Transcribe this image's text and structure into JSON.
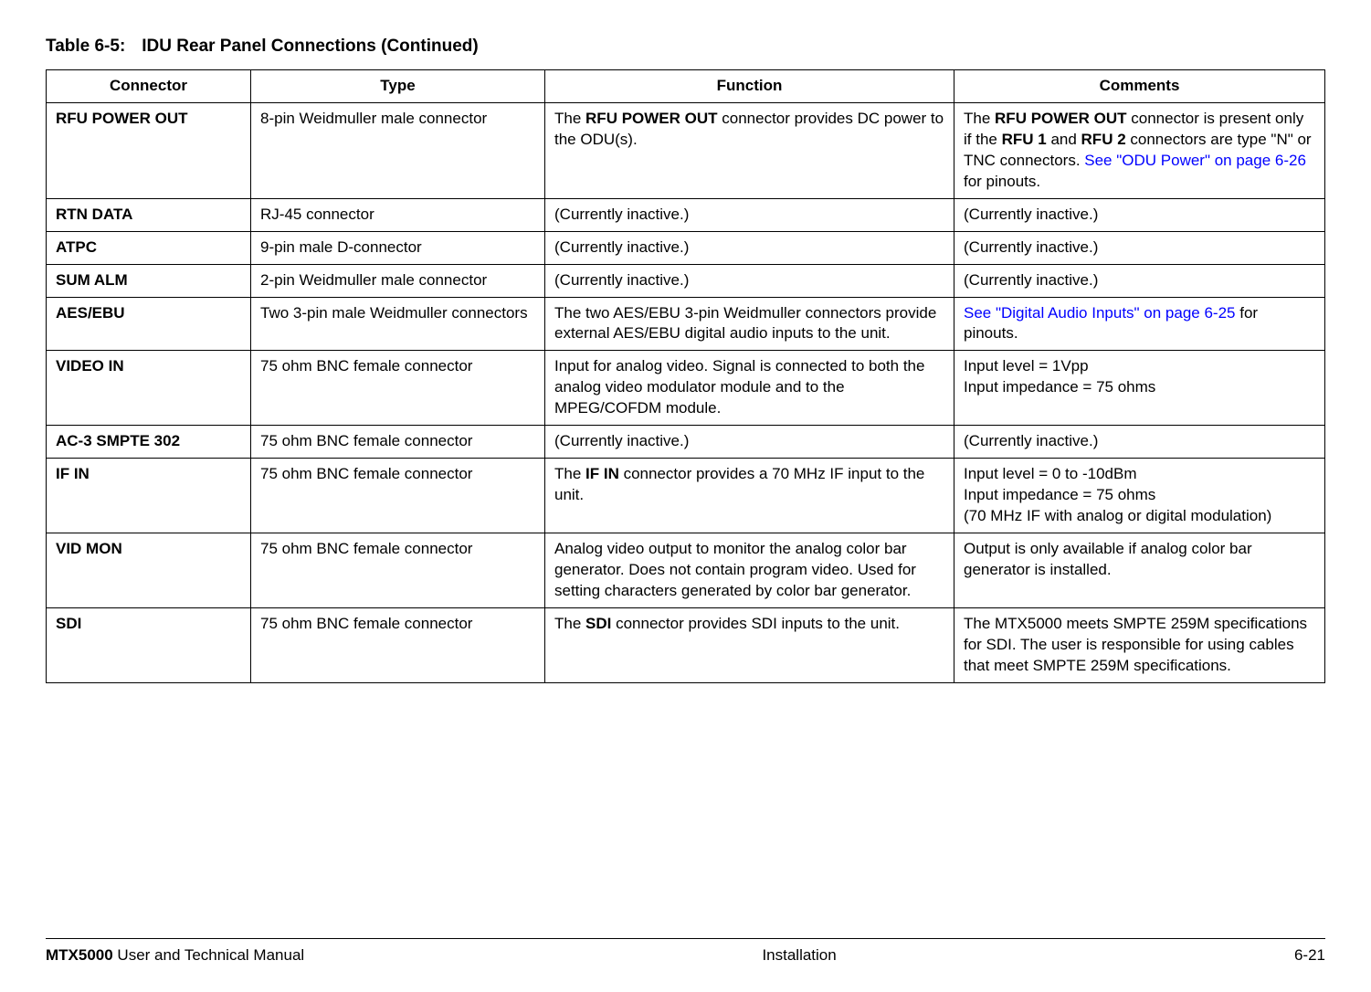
{
  "title_number": "Table 6-5:",
  "title_text": "IDU Rear Panel Connections (Continued)",
  "headers": {
    "connector": "Connector",
    "type": "Type",
    "function": "Function",
    "comments": "Comments"
  },
  "rows": {
    "r0": {
      "connector": "RFU POWER OUT",
      "type": "8-pin Weidmuller male connector",
      "func_pre": "The ",
      "func_bold1": "RFU POWER OUT",
      "func_post": " connector provides DC power to the ODU(s).",
      "com_pre": "The ",
      "com_b1": "RFU POWER OUT",
      "com_mid1": " connector is present only if the ",
      "com_b2": "RFU 1",
      "com_mid2": " and  ",
      "com_b3": "RFU 2",
      "com_mid3": " connectors are type \"N\" or TNC connectors. ",
      "com_link": "See \"ODU Power\" on page 6-26",
      "com_post": " for pinouts."
    },
    "r1": {
      "connector": "RTN DATA",
      "type": "RJ-45 connector",
      "function": "(Currently inactive.)",
      "comments": "(Currently inactive.)"
    },
    "r2": {
      "connector": "ATPC",
      "type": "9-pin male D-connector",
      "function": "(Currently inactive.)",
      "comments": "(Currently inactive.)"
    },
    "r3": {
      "connector": "SUM ALM",
      "type": "2-pin Weidmuller male connector",
      "function": "(Currently inactive.)",
      "comments": "(Currently inactive.)"
    },
    "r4": {
      "connector": "AES/EBU",
      "type": "Two 3-pin male Weidmuller connectors",
      "function": "The two AES/EBU 3-pin Weidmuller connectors provide external AES/EBU digital audio inputs to the unit.",
      "com_link": "See \"Digital Audio Inputs\" on page 6-25",
      "com_post": " for pinouts."
    },
    "r5": {
      "connector": "VIDEO IN",
      "type": "75 ohm BNC female connector",
      "function": "Input for analog video.  Signal is connected to both the analog video modulator module and to the MPEG/COFDM module.",
      "com_l1": "Input level = 1Vpp",
      "com_l2": "Input impedance = 75 ohms"
    },
    "r6": {
      "connector": "AC-3 SMPTE 302",
      "type": "75 ohm BNC female connector",
      "function": "(Currently inactive.)",
      "comments": "(Currently inactive.)"
    },
    "r7": {
      "connector": "IF IN",
      "type": "75 ohm BNC female connector",
      "func_pre": "The ",
      "func_bold1": "IF IN",
      "func_post": " connector provides a 70 MHz IF input to the unit.",
      "com_l1": "Input level = 0 to -10dBm",
      "com_l2": "Input impedance = 75 ohms",
      "com_l3": "(70 MHz IF with analog or digital modulation)"
    },
    "r8": {
      "connector": "VID MON",
      "type": "75 ohm BNC female connector",
      "function": "Analog video output to monitor the analog color bar generator.  Does not contain program video.  Used for setting characters generated by color bar generator.",
      "comments": "Output is only available if analog color bar generator is installed."
    },
    "r9": {
      "connector": "SDI",
      "type": "75 ohm BNC female connector",
      "func_pre": "The ",
      "func_bold1": "SDI",
      "func_post": " connector provides SDI inputs to the unit.",
      "comments": "The MTX5000 meets SMPTE 259M specifications for SDI.  The user is responsible for using cables that meet SMPTE 259M specifications."
    }
  },
  "footer": {
    "product": "MTX5000",
    "manual": " User and Technical Manual",
    "section": "Installation",
    "page": "6-21"
  }
}
